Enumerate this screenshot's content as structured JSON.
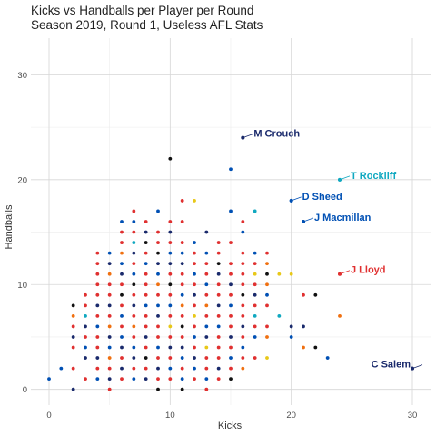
{
  "chart_data": {
    "type": "scatter",
    "title": "Kicks vs Handballs per Player per Round",
    "subtitle": "Season 2019, Round 1, Useless AFL Stats",
    "xlabel": "Kicks",
    "ylabel": "Handballs",
    "xlim": [
      -1.5,
      31.5
    ],
    "ylim": [
      -1.5,
      33.5
    ],
    "x_ticks": [
      0,
      10,
      20,
      30
    ],
    "y_ticks": [
      0,
      10,
      20,
      30
    ],
    "grid": true,
    "legend": "none",
    "colors": [
      "#1a2a6c",
      "#e03030",
      "#0050b4",
      "#f07010",
      "#10a8c0",
      "#e8c818",
      "#101010"
    ],
    "points": [
      [
        0,
        1,
        2
      ],
      [
        1,
        2,
        2
      ],
      [
        2,
        0,
        0
      ],
      [
        2,
        2,
        1
      ],
      [
        2,
        4,
        1
      ],
      [
        2,
        6,
        1
      ],
      [
        2,
        8,
        6
      ],
      [
        2,
        7,
        3
      ],
      [
        2,
        5,
        0
      ],
      [
        3,
        1,
        1
      ],
      [
        3,
        3,
        0
      ],
      [
        3,
        4,
        2
      ],
      [
        3,
        5,
        1
      ],
      [
        3,
        6,
        0
      ],
      [
        3,
        7,
        4
      ],
      [
        3,
        8,
        1
      ],
      [
        3,
        9,
        1
      ],
      [
        4,
        1,
        2
      ],
      [
        4,
        2,
        1
      ],
      [
        4,
        3,
        0
      ],
      [
        4,
        4,
        1
      ],
      [
        4,
        5,
        1
      ],
      [
        4,
        6,
        2
      ],
      [
        4,
        7,
        1
      ],
      [
        4,
        8,
        0
      ],
      [
        4,
        9,
        1
      ],
      [
        4,
        10,
        1
      ],
      [
        4,
        11,
        1
      ],
      [
        4,
        12,
        1
      ],
      [
        4,
        13,
        1
      ],
      [
        5,
        0,
        1
      ],
      [
        5,
        1,
        0
      ],
      [
        5,
        2,
        1
      ],
      [
        5,
        3,
        3
      ],
      [
        5,
        4,
        2
      ],
      [
        5,
        5,
        0
      ],
      [
        5,
        6,
        3
      ],
      [
        5,
        7,
        1
      ],
      [
        5,
        8,
        0
      ],
      [
        5,
        9,
        1
      ],
      [
        5,
        10,
        1
      ],
      [
        5,
        11,
        3
      ],
      [
        5,
        12,
        0
      ],
      [
        5,
        13,
        2
      ],
      [
        6,
        1,
        1
      ],
      [
        6,
        2,
        0
      ],
      [
        6,
        3,
        1
      ],
      [
        6,
        4,
        0
      ],
      [
        6,
        5,
        2
      ],
      [
        6,
        6,
        1
      ],
      [
        6,
        7,
        2
      ],
      [
        6,
        8,
        1
      ],
      [
        6,
        9,
        6
      ],
      [
        6,
        10,
        1
      ],
      [
        6,
        11,
        0
      ],
      [
        6,
        12,
        2
      ],
      [
        6,
        13,
        3
      ],
      [
        6,
        14,
        1
      ],
      [
        6,
        15,
        1
      ],
      [
        6,
        16,
        2
      ],
      [
        7,
        1,
        2
      ],
      [
        7,
        2,
        1
      ],
      [
        7,
        3,
        0
      ],
      [
        7,
        4,
        2
      ],
      [
        7,
        5,
        1
      ],
      [
        7,
        6,
        3
      ],
      [
        7,
        7,
        1
      ],
      [
        7,
        8,
        0
      ],
      [
        7,
        9,
        1
      ],
      [
        7,
        10,
        6
      ],
      [
        7,
        11,
        2
      ],
      [
        7,
        12,
        1
      ],
      [
        7,
        13,
        0
      ],
      [
        7,
        14,
        4
      ],
      [
        7,
        15,
        1
      ],
      [
        7,
        16,
        2
      ],
      [
        7,
        17,
        1
      ],
      [
        8,
        1,
        0
      ],
      [
        8,
        2,
        1
      ],
      [
        8,
        3,
        6
      ],
      [
        8,
        4,
        1
      ],
      [
        8,
        5,
        0
      ],
      [
        8,
        6,
        1
      ],
      [
        8,
        7,
        1
      ],
      [
        8,
        8,
        2
      ],
      [
        8,
        9,
        1
      ],
      [
        8,
        10,
        1
      ],
      [
        8,
        11,
        1
      ],
      [
        8,
        12,
        2
      ],
      [
        8,
        13,
        1
      ],
      [
        8,
        14,
        6
      ],
      [
        8,
        15,
        0
      ],
      [
        8,
        16,
        1
      ],
      [
        9,
        0,
        6
      ],
      [
        9,
        1,
        1
      ],
      [
        9,
        2,
        0
      ],
      [
        9,
        3,
        1
      ],
      [
        9,
        4,
        2
      ],
      [
        9,
        5,
        1
      ],
      [
        9,
        6,
        1
      ],
      [
        9,
        7,
        0
      ],
      [
        9,
        8,
        2
      ],
      [
        9,
        9,
        1
      ],
      [
        9,
        10,
        3
      ],
      [
        9,
        11,
        2
      ],
      [
        9,
        12,
        0
      ],
      [
        9,
        13,
        6
      ],
      [
        9,
        14,
        1
      ],
      [
        9,
        15,
        1
      ],
      [
        9,
        17,
        2
      ],
      [
        10,
        1,
        1
      ],
      [
        10,
        2,
        2
      ],
      [
        10,
        3,
        1
      ],
      [
        10,
        4,
        0
      ],
      [
        10,
        5,
        1
      ],
      [
        10,
        6,
        5
      ],
      [
        10,
        7,
        1
      ],
      [
        10,
        8,
        2
      ],
      [
        10,
        9,
        1
      ],
      [
        10,
        10,
        6
      ],
      [
        10,
        11,
        1
      ],
      [
        10,
        12,
        0
      ],
      [
        10,
        13,
        2
      ],
      [
        10,
        14,
        1
      ],
      [
        10,
        15,
        0
      ],
      [
        10,
        16,
        1
      ],
      [
        10,
        22,
        6
      ],
      [
        11,
        0,
        6
      ],
      [
        11,
        1,
        2
      ],
      [
        11,
        2,
        1
      ],
      [
        11,
        3,
        2
      ],
      [
        11,
        4,
        0
      ],
      [
        11,
        5,
        1
      ],
      [
        11,
        6,
        6
      ],
      [
        11,
        7,
        1
      ],
      [
        11,
        8,
        3
      ],
      [
        11,
        9,
        2
      ],
      [
        11,
        10,
        1
      ],
      [
        11,
        11,
        1
      ],
      [
        11,
        12,
        0
      ],
      [
        11,
        13,
        2
      ],
      [
        11,
        14,
        1
      ],
      [
        11,
        16,
        1
      ],
      [
        11,
        18,
        1
      ],
      [
        12,
        1,
        1
      ],
      [
        12,
        2,
        2
      ],
      [
        12,
        3,
        0
      ],
      [
        12,
        4,
        1
      ],
      [
        12,
        5,
        2
      ],
      [
        12,
        6,
        1
      ],
      [
        12,
        7,
        5
      ],
      [
        12,
        8,
        1
      ],
      [
        12,
        9,
        0
      ],
      [
        12,
        10,
        1
      ],
      [
        12,
        11,
        2
      ],
      [
        12,
        12,
        1
      ],
      [
        12,
        13,
        1
      ],
      [
        12,
        14,
        2
      ],
      [
        12,
        18,
        5
      ],
      [
        13,
        0,
        1
      ],
      [
        13,
        1,
        2
      ],
      [
        13,
        2,
        1
      ],
      [
        13,
        3,
        1
      ],
      [
        13,
        4,
        5
      ],
      [
        13,
        5,
        0
      ],
      [
        13,
        6,
        2
      ],
      [
        13,
        7,
        1
      ],
      [
        13,
        8,
        3
      ],
      [
        13,
        9,
        1
      ],
      [
        13,
        10,
        2
      ],
      [
        13,
        11,
        1
      ],
      [
        13,
        12,
        1
      ],
      [
        13,
        13,
        2
      ],
      [
        13,
        15,
        0
      ],
      [
        14,
        1,
        1
      ],
      [
        14,
        2,
        0
      ],
      [
        14,
        3,
        1
      ],
      [
        14,
        4,
        1
      ],
      [
        14,
        5,
        1
      ],
      [
        14,
        6,
        2
      ],
      [
        14,
        7,
        1
      ],
      [
        14,
        8,
        0
      ],
      [
        14,
        9,
        1
      ],
      [
        14,
        10,
        1
      ],
      [
        14,
        11,
        0
      ],
      [
        14,
        12,
        6
      ],
      [
        14,
        13,
        1
      ],
      [
        14,
        14,
        1
      ],
      [
        15,
        1,
        6
      ],
      [
        15,
        2,
        1
      ],
      [
        15,
        3,
        2
      ],
      [
        15,
        4,
        1
      ],
      [
        15,
        5,
        0
      ],
      [
        15,
        6,
        1
      ],
      [
        15,
        7,
        1
      ],
      [
        15,
        8,
        2
      ],
      [
        15,
        9,
        1
      ],
      [
        15,
        10,
        0
      ],
      [
        15,
        11,
        1
      ],
      [
        15,
        12,
        1
      ],
      [
        15,
        14,
        1
      ],
      [
        15,
        17,
        2
      ],
      [
        15,
        21,
        2
      ],
      [
        16,
        2,
        3
      ],
      [
        16,
        3,
        1
      ],
      [
        16,
        4,
        2
      ],
      [
        16,
        5,
        1
      ],
      [
        16,
        6,
        0
      ],
      [
        16,
        7,
        1
      ],
      [
        16,
        8,
        1
      ],
      [
        16,
        9,
        6
      ],
      [
        16,
        10,
        1
      ],
      [
        16,
        11,
        1
      ],
      [
        16,
        12,
        1
      ],
      [
        16,
        13,
        1
      ],
      [
        16,
        15,
        2
      ],
      [
        16,
        16,
        1
      ],
      [
        16,
        24,
        6
      ],
      [
        17,
        3,
        1
      ],
      [
        17,
        5,
        2
      ],
      [
        17,
        6,
        1
      ],
      [
        17,
        7,
        4
      ],
      [
        17,
        8,
        1
      ],
      [
        17,
        9,
        0
      ],
      [
        17,
        10,
        1
      ],
      [
        17,
        11,
        5
      ],
      [
        17,
        12,
        1
      ],
      [
        17,
        13,
        2
      ],
      [
        17,
        17,
        4
      ],
      [
        18,
        3,
        5
      ],
      [
        18,
        5,
        3
      ],
      [
        18,
        6,
        1
      ],
      [
        18,
        8,
        1
      ],
      [
        18,
        9,
        2
      ],
      [
        18,
        10,
        3
      ],
      [
        18,
        11,
        6
      ],
      [
        18,
        12,
        3
      ],
      [
        18,
        13,
        1
      ],
      [
        19,
        7,
        4
      ],
      [
        19,
        11,
        5
      ],
      [
        20,
        5,
        2
      ],
      [
        20,
        6,
        0
      ],
      [
        20,
        11,
        5
      ],
      [
        20,
        18,
        2
      ],
      [
        21,
        4,
        3
      ],
      [
        21,
        6,
        0
      ],
      [
        21,
        9,
        1
      ],
      [
        21,
        16,
        2
      ],
      [
        22,
        4,
        6
      ],
      [
        22,
        9,
        6
      ],
      [
        23,
        3,
        2
      ],
      [
        24,
        7,
        3
      ],
      [
        24,
        11,
        1
      ],
      [
        24,
        20,
        4
      ],
      [
        30,
        2,
        0
      ]
    ],
    "labeled": [
      {
        "name": "M Crouch",
        "kicks": 16,
        "handballs": 24,
        "color": "#1a2a6c"
      },
      {
        "name": "T Rockliff",
        "kicks": 24,
        "handballs": 20,
        "color": "#10a8c0"
      },
      {
        "name": "D Sheed",
        "kicks": 20,
        "handballs": 18,
        "color": "#0050b4"
      },
      {
        "name": "J Macmillan",
        "kicks": 21,
        "handballs": 16,
        "color": "#0050b4"
      },
      {
        "name": "J Lloyd",
        "kicks": 24,
        "handballs": 11,
        "color": "#e03030"
      },
      {
        "name": "C Salem",
        "kicks": 30,
        "handballs": 2,
        "color": "#1a2a6c"
      }
    ]
  }
}
